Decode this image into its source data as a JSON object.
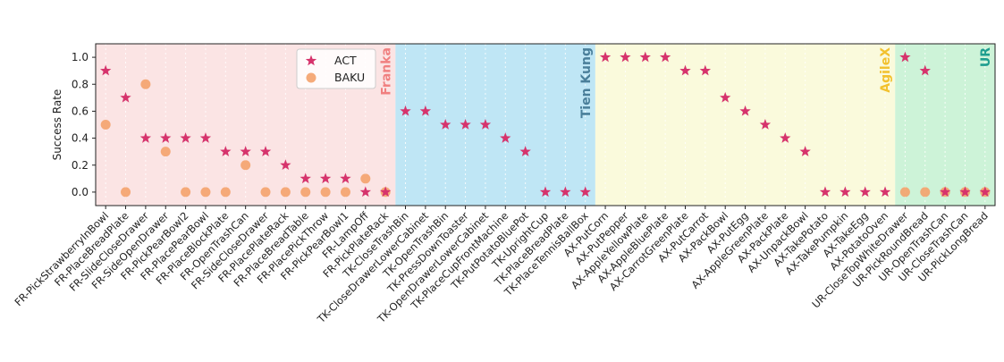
{
  "chart_data": {
    "type": "scatter",
    "ylabel": "Success Rate",
    "ylim": [
      -0.1,
      1.1
    ],
    "yticks": [
      "0.0",
      "0.2",
      "0.4",
      "0.6",
      "0.8",
      "1.0"
    ],
    "legend_position": "top-left",
    "categories": [
      "FR-PickStrawberryInBowl",
      "FR-PlaceBreadPlate",
      "FR-SlideCloseDrawer",
      "FR-SideOpenDrawer",
      "FR-PickPearBowl2",
      "FR-PlacePearBowl",
      "FR-PlaceBlockPlate",
      "FR-OpenTrashCan",
      "FR-SideCloseDrawer",
      "FR-PlacePlateRack",
      "FR-PlaceBreadTable",
      "FR-PlacePickThrow",
      "FR-PickPearBowl1",
      "FR-LampOff",
      "FR-PickPlateRack",
      "TK-CloseTrashBin",
      "TK-CloseDrawerLowerCabinet",
      "TK-OpenTrashBin",
      "TK-PressDownToaster",
      "TK-OpenDrawerLowerCabinet",
      "TK-PlaceCupFrontMachine",
      "TK-PutPotatoBluePot",
      "TK-UprightCup",
      "TK-PlaceBreadPlate",
      "TK-PlaceTennisBallBox",
      "AX-PutCorn",
      "AX-PutPepper",
      "AX-AppleYellowPlate",
      "AX-AppleBluePlate",
      "AX-CarrotGreenPlate",
      "AX-PutCarrot",
      "AX-PackBowl",
      "AX-PutEgg",
      "AX-AppleGreenPlate",
      "AX-PackPlate",
      "AX-UnpackBowl",
      "AX-TakePotato",
      "AX-TakePumpkin",
      "AX-TakeEgg",
      "AX-PotatoOven",
      "UR-CloseTopWhiteDrawer",
      "UR-PickRoundBread",
      "UR-OpenTrashCan",
      "UR-CloseTrashCan",
      "UR-PickLongBread"
    ],
    "series": [
      {
        "name": "ACT",
        "marker": "star",
        "color": "#d6336c",
        "values": [
          0.9,
          0.7,
          0.4,
          0.4,
          0.4,
          0.4,
          0.3,
          0.3,
          0.3,
          0.2,
          0.1,
          0.1,
          0.1,
          0.0,
          0.0,
          0.6,
          0.6,
          0.5,
          0.5,
          0.5,
          0.4,
          0.3,
          0.0,
          0.0,
          0.0,
          1.0,
          1.0,
          1.0,
          1.0,
          0.9,
          0.9,
          0.7,
          0.6,
          0.5,
          0.4,
          0.3,
          0.0,
          0.0,
          0.0,
          0.0,
          1.0,
          0.9,
          0.0,
          0.0,
          0.0
        ]
      },
      {
        "name": "BAKU",
        "marker": "circle",
        "color": "#f4a26b",
        "values": [
          0.5,
          0.0,
          0.8,
          0.3,
          0.0,
          0.0,
          0.0,
          0.2,
          0.0,
          0.0,
          0.0,
          0.0,
          0.0,
          0.1,
          0.0,
          null,
          null,
          null,
          null,
          null,
          null,
          null,
          null,
          null,
          null,
          null,
          null,
          null,
          null,
          null,
          null,
          null,
          null,
          null,
          null,
          null,
          null,
          null,
          null,
          null,
          0.0,
          0.0,
          0.0,
          0.0,
          0.0
        ]
      }
    ],
    "regions": [
      {
        "label": "Franka",
        "start": 0,
        "end": 14,
        "fill": "#fbe4e4",
        "text_color": "#f08080"
      },
      {
        "label": "Tien Kung",
        "start": 15,
        "end": 24,
        "fill": "#bfe6f5",
        "text_color": "#4a7f9a"
      },
      {
        "label": "AgileX",
        "start": 25,
        "end": 39,
        "fill": "#fafadc",
        "text_color": "#f2c12e"
      },
      {
        "label": "UR",
        "start": 40,
        "end": 44,
        "fill": "#cdf3d8",
        "text_color": "#1f9e8f"
      }
    ]
  }
}
